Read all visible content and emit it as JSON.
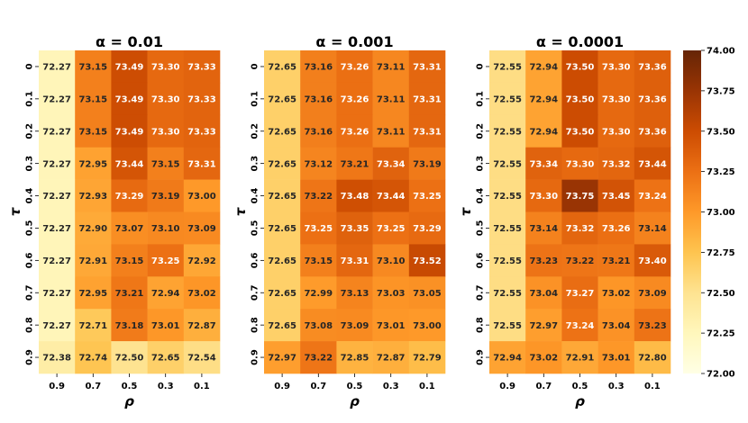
{
  "chart_data": {
    "type": "heatmap",
    "colormap": [
      "#ffffe5",
      "#fff7bc",
      "#fee391",
      "#fec44f",
      "#fe9929",
      "#ec7014",
      "#cc4c02",
      "#993404",
      "#662506"
    ],
    "color_range": [
      72.0,
      74.0
    ],
    "x_axis_label": "ρ",
    "y_axis_label": "τ",
    "x_tick_labels": [
      "0.9",
      "0.7",
      "0.5",
      "0.3",
      "0.1"
    ],
    "y_tick_labels": [
      "0",
      "0.1",
      "0.2",
      "0.3",
      "0.4",
      "0.5",
      "0.6",
      "0.7",
      "0.8",
      "0.9"
    ],
    "colorbar_ticks": [
      "74.00",
      "73.75",
      "73.50",
      "73.25",
      "73.00",
      "72.75",
      "72.50",
      "72.25",
      "72.00"
    ],
    "panels": [
      {
        "title": "α = 0.01",
        "values": [
          [
            72.27,
            73.15,
            73.49,
            73.3,
            73.33
          ],
          [
            72.27,
            73.15,
            73.49,
            73.3,
            73.33
          ],
          [
            72.27,
            73.15,
            73.49,
            73.3,
            73.33
          ],
          [
            72.27,
            72.95,
            73.44,
            73.15,
            73.31
          ],
          [
            72.27,
            72.93,
            73.29,
            73.19,
            73.0
          ],
          [
            72.27,
            72.9,
            73.07,
            73.1,
            73.09
          ],
          [
            72.27,
            72.91,
            73.15,
            73.25,
            72.92
          ],
          [
            72.27,
            72.95,
            73.21,
            72.94,
            73.02
          ],
          [
            72.27,
            72.71,
            73.18,
            73.01,
            72.87
          ],
          [
            72.38,
            72.74,
            72.5,
            72.65,
            72.54
          ]
        ]
      },
      {
        "title": "α = 0.001",
        "values": [
          [
            72.65,
            73.16,
            73.26,
            73.11,
            73.31
          ],
          [
            72.65,
            73.16,
            73.26,
            73.11,
            73.31
          ],
          [
            72.65,
            73.16,
            73.26,
            73.11,
            73.31
          ],
          [
            72.65,
            73.12,
            73.21,
            73.34,
            73.19
          ],
          [
            72.65,
            73.22,
            73.48,
            73.44,
            73.25
          ],
          [
            72.65,
            73.25,
            73.35,
            73.25,
            73.29
          ],
          [
            72.65,
            73.15,
            73.31,
            73.1,
            73.52
          ],
          [
            72.65,
            72.99,
            73.13,
            73.03,
            73.05
          ],
          [
            72.65,
            73.08,
            73.09,
            73.01,
            73.0
          ],
          [
            72.97,
            73.22,
            72.85,
            72.87,
            72.79
          ]
        ]
      },
      {
        "title": "α = 0.0001",
        "values": [
          [
            72.55,
            72.94,
            73.5,
            73.3,
            73.36
          ],
          [
            72.55,
            72.94,
            73.5,
            73.3,
            73.36
          ],
          [
            72.55,
            72.94,
            73.5,
            73.3,
            73.36
          ],
          [
            72.55,
            73.34,
            73.3,
            73.32,
            73.44
          ],
          [
            72.55,
            73.3,
            73.75,
            73.45,
            73.24
          ],
          [
            72.55,
            73.14,
            73.32,
            73.26,
            73.14
          ],
          [
            72.55,
            73.23,
            73.22,
            73.21,
            73.4
          ],
          [
            72.55,
            73.04,
            73.27,
            73.02,
            73.09
          ],
          [
            72.55,
            72.97,
            73.24,
            73.04,
            73.23
          ],
          [
            72.94,
            73.02,
            72.91,
            73.01,
            72.8
          ]
        ]
      }
    ]
  }
}
